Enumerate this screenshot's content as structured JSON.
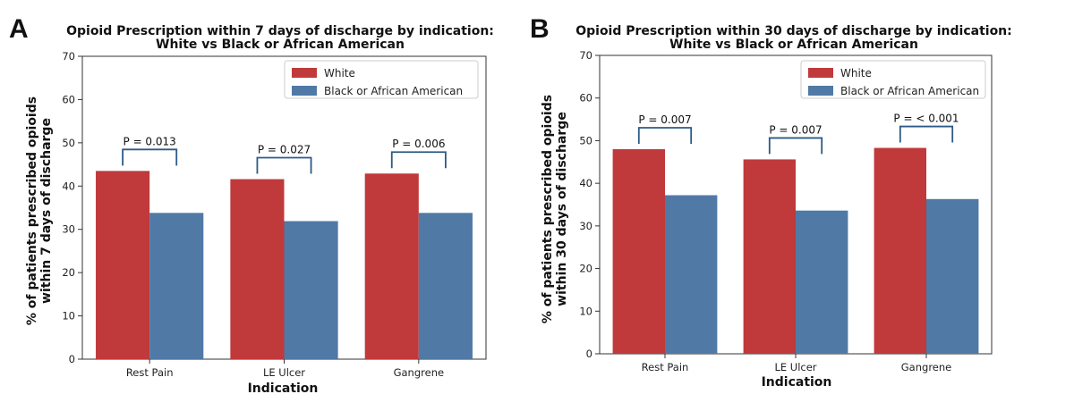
{
  "chart_data": [
    {
      "panel_label": "A",
      "type": "bar",
      "title_lines": [
        "Opioid Prescription within 7 days of discharge by indication:",
        "White vs Black or African American"
      ],
      "ylabel_lines": [
        "% of patients prescribed opioids",
        "within 7 days of discharge"
      ],
      "xlabel": "Indication",
      "categories": [
        "Rest Pain",
        "LE Ulcer",
        "Gangrene"
      ],
      "ylim": [
        0,
        70
      ],
      "yticks": [
        "0",
        "10",
        "20",
        "30",
        "40",
        "50",
        "60",
        "70"
      ],
      "legend_position": "top-right",
      "series": [
        {
          "name": "White",
          "color": "#c0393b",
          "values": [
            43.5,
            41.6,
            42.9
          ]
        },
        {
          "name": "Black or African American",
          "color": "#5079a6",
          "values": [
            33.8,
            31.9,
            33.8
          ]
        }
      ],
      "pvalues": [
        "P = 0.013",
        "P = 0.027",
        "P = 0.006"
      ]
    },
    {
      "panel_label": "B",
      "type": "bar",
      "title_lines": [
        "Opioid Prescription within 30 days of discharge by indication:",
        "White vs Black or African American"
      ],
      "ylabel_lines": [
        "% of patients prescribed opioids",
        "within 30 days of discharge"
      ],
      "xlabel": "Indication",
      "categories": [
        "Rest Pain",
        "LE Ulcer",
        "Gangrene"
      ],
      "ylim": [
        0,
        70
      ],
      "yticks": [
        "0",
        "10",
        "20",
        "30",
        "40",
        "50",
        "60",
        "70"
      ],
      "legend_position": "top-right",
      "series": [
        {
          "name": "White",
          "color": "#c0393b",
          "values": [
            48.0,
            45.6,
            48.3
          ]
        },
        {
          "name": "Black or African American",
          "color": "#5079a6",
          "values": [
            37.2,
            33.6,
            36.3
          ]
        }
      ],
      "pvalues": [
        "P = 0.007",
        "P = 0.007",
        "P = < 0.001"
      ]
    }
  ]
}
